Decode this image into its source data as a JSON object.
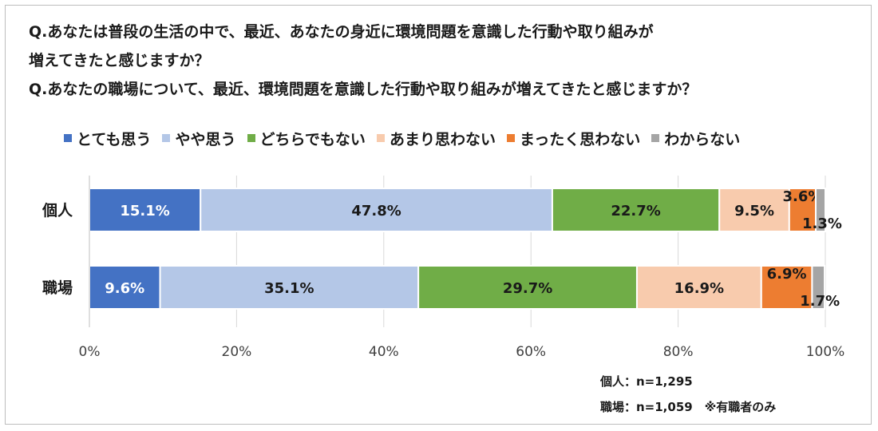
{
  "title": {
    "line1": "Q.あなたは普段の生活の中で、最近、あなたの身近に環境問題を意識した行動や取り組みが",
    "line2": "増えてきたと感じますか？",
    "line3": "Q.あなたの職場について、最近、環境問題を意識した行動や取り組みが増えてきたと感じますか？"
  },
  "notes": {
    "personal": "個人：n=1,295",
    "workplace": "職場：n=1,059　※有職者のみ"
  },
  "chart_data": {
    "type": "bar",
    "orientation": "horizontal",
    "stacked": true,
    "categories": [
      "個人",
      "職場"
    ],
    "series": [
      {
        "name": "とても思う",
        "color": "#4472C4",
        "values": [
          15.1,
          9.6
        ],
        "labels": [
          "15.1%",
          "9.6%"
        ],
        "label_color": "#ffffff"
      },
      {
        "name": "やや思う",
        "color": "#B4C7E7",
        "values": [
          47.8,
          35.1
        ],
        "labels": [
          "47.8%",
          "35.1%"
        ],
        "label_color": "#1a1a1a"
      },
      {
        "name": "どちらでもない",
        "color": "#70AD47",
        "values": [
          22.7,
          29.7
        ],
        "labels": [
          "22.7%",
          "29.7%"
        ],
        "label_color": "#1a1a1a"
      },
      {
        "name": "あまり思わない",
        "color": "#F8CBAD",
        "values": [
          9.5,
          16.9
        ],
        "labels": [
          "9.5%",
          "16.9%"
        ],
        "label_color": "#1a1a1a"
      },
      {
        "name": "まったく思わない",
        "color": "#ED7D31",
        "values": [
          3.6,
          6.9
        ],
        "labels": [
          "3.6%",
          "6.9%"
        ],
        "label_color": "#1a1a1a"
      },
      {
        "name": "わからない",
        "color": "#A5A5A5",
        "values": [
          1.3,
          1.7
        ],
        "labels": [
          "1.3%",
          "1.7%"
        ],
        "label_color": "#1a1a1a"
      }
    ],
    "xlim": [
      0,
      100
    ],
    "xticks": [
      "0%",
      "20%",
      "40%",
      "60%",
      "80%",
      "100%"
    ],
    "legend_position": "top",
    "grid": true
  }
}
